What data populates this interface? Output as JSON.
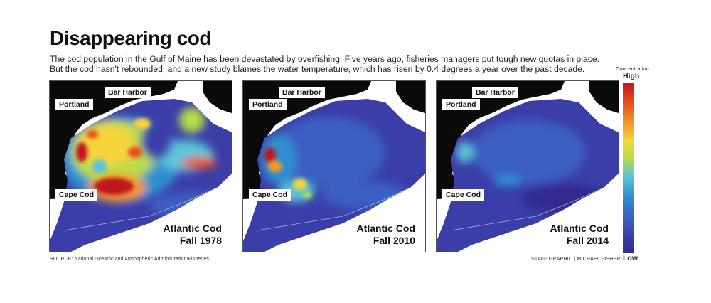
{
  "title": "Disappearing cod",
  "description": "The cod population in the Gulf of Maine has been devastated by overfishing. Five years ago, fisheries managers put tough new quotas in place. But the cod hasn't rebounded, and a new study blames the water temperature, which has risen by 0.4 degrees a year over the past decade.",
  "legend": {
    "title": "Concentration",
    "high": "High",
    "low": "Low",
    "colors": [
      "#c0141c",
      "#e8501e",
      "#f29a2a",
      "#f5d53a",
      "#b8dd4a",
      "#5cc4d8",
      "#2f8fd0",
      "#3a5ec2",
      "#3a3ea8",
      "#302a8f"
    ]
  },
  "places": {
    "bar_harbor": "Bar Harbor",
    "portland": "Portland",
    "cape_cod": "Cape Cod"
  },
  "panels": [
    {
      "species": "Atlantic Cod",
      "season": "Fall 1978",
      "level": "high"
    },
    {
      "species": "Atlantic Cod",
      "season": "Fall 2010",
      "level": "low"
    },
    {
      "species": "Atlantic Cod",
      "season": "Fall 2014",
      "level": "lowest"
    }
  ],
  "source": "SOURCE: National Oceanic and Atmospheric Administration/Fisheries",
  "credit": "STAFF GRAPHIC | MICHAEL FISHER"
}
